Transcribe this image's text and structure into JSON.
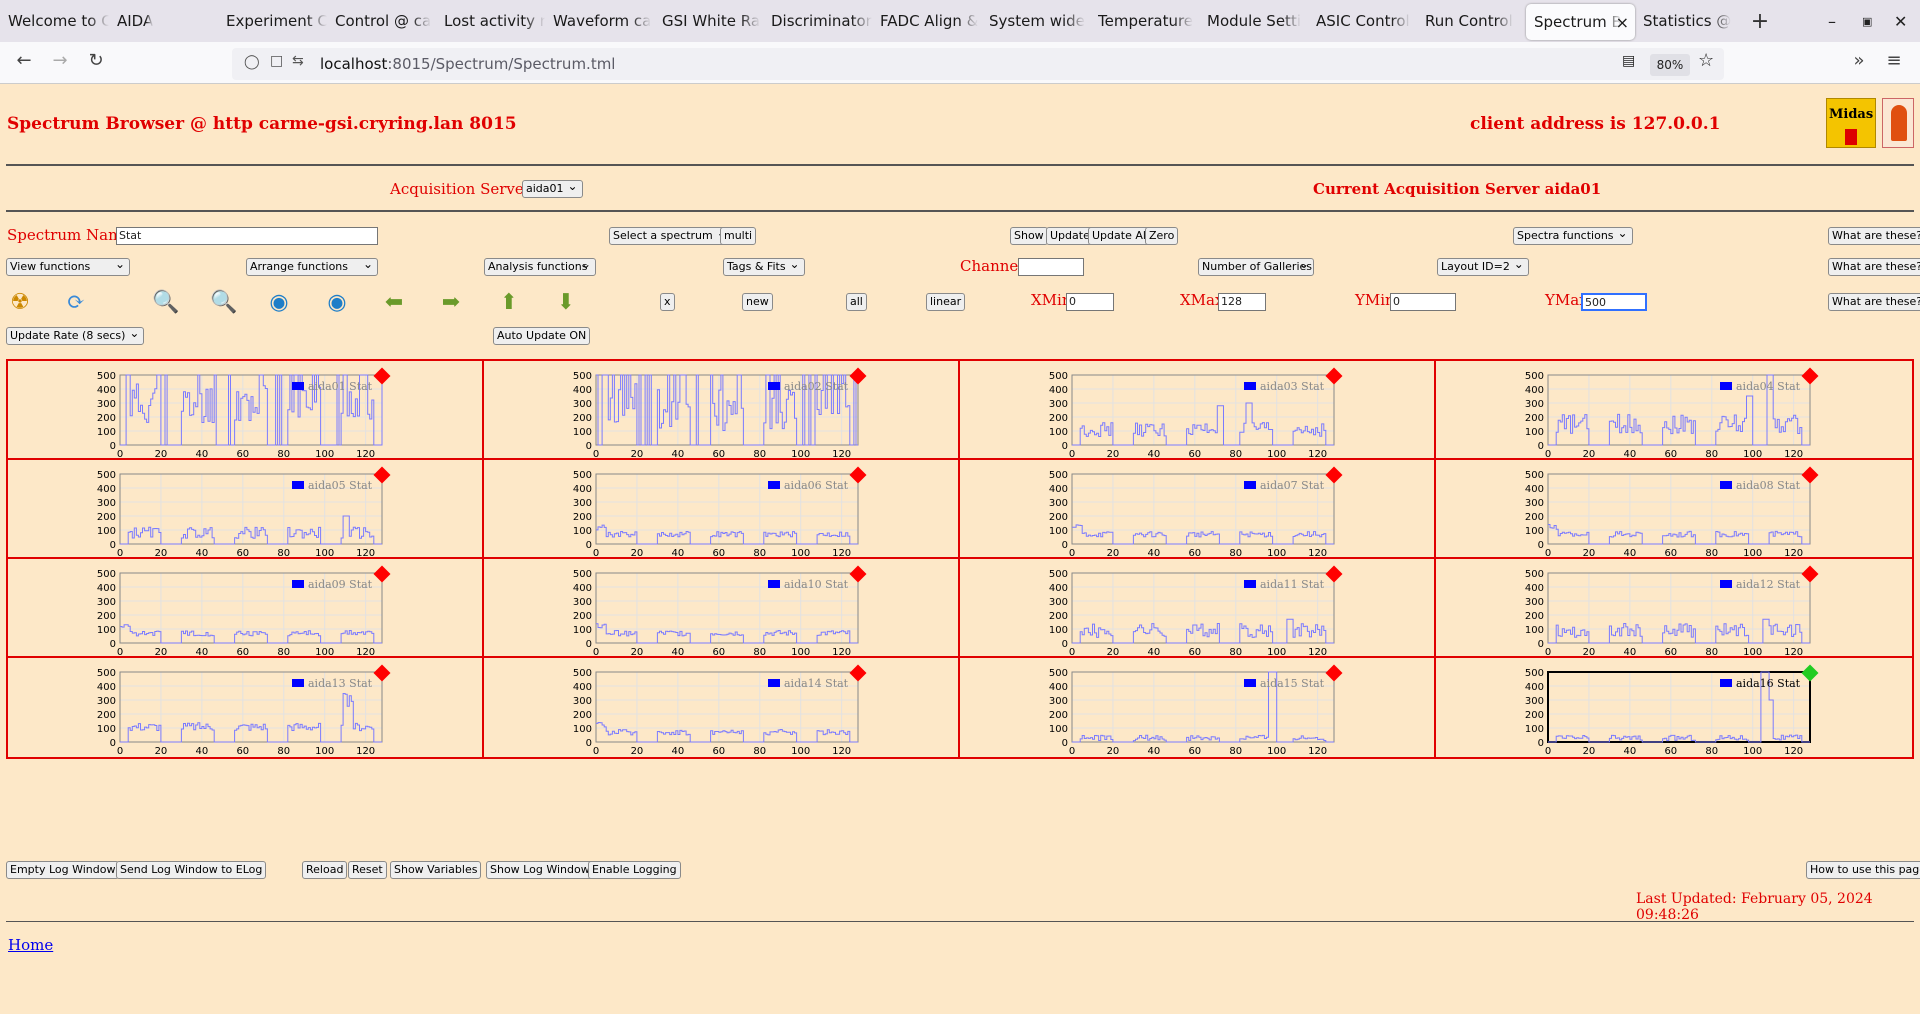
{
  "browser": {
    "tabs": [
      {
        "label": "Welcome to C"
      },
      {
        "label": "AIDA"
      },
      {
        "label": "Experiment C"
      },
      {
        "label": "Control @ ca"
      },
      {
        "label": "Lost activity r"
      },
      {
        "label": "Waveform ca"
      },
      {
        "label": "GSI White Ra"
      },
      {
        "label": "Discriminator"
      },
      {
        "label": "FADC Align &"
      },
      {
        "label": "System wide"
      },
      {
        "label": "Temperature"
      },
      {
        "label": "Module Setti"
      },
      {
        "label": "ASIC Control"
      },
      {
        "label": "Run Control"
      },
      {
        "label": "Spectrum B",
        "active": true
      },
      {
        "label": "Statistics @"
      }
    ],
    "url_host": "localhost",
    "url_rest": ":8015/Spectrum/Spectrum.tml",
    "zoom": "80%"
  },
  "header": {
    "title": "Spectrum Browser @ http carme-gsi.cryring.lan 8015",
    "client": "client address is 127.0.0.1",
    "logo_midas": "Midas"
  },
  "acq": {
    "label": "Acquisition Servers",
    "server_select": "aida01",
    "current": "Current Acquisition Server aida01"
  },
  "controls": {
    "spectrum_name_label": "Spectrum Name:",
    "spectrum_name_value": "Stat",
    "select_spectrum": "Select a spectrum",
    "multi": "multi",
    "show": "Show",
    "update": "Update",
    "update_all": "Update All",
    "zero": "Zero",
    "spectra_functions": "Spectra functions",
    "what1": "What are these?",
    "view_functions": "View functions",
    "arrange_functions": "Arrange functions",
    "analysis_functions": "Analysis functions",
    "tags_fits": "Tags & Fits",
    "channel_label": "Channel:",
    "channel_value": "",
    "galleries": "Number of Galleries",
    "layout": "Layout ID=2",
    "what2": "What are these?",
    "x_btn": "x",
    "new_btn": "new",
    "all_btn": "all",
    "linear_btn": "linear",
    "xmin_label": "XMin",
    "xmin": "0",
    "xmax_label": "XMax",
    "xmax": "128",
    "ymin_label": "YMin",
    "ymin": "0",
    "ymax_label": "YMax",
    "ymax": "500",
    "what3": "What are these?",
    "update_rate": "Update Rate (8 secs)",
    "auto_update": "Auto Update ON"
  },
  "footer": {
    "buttons": [
      "Empty Log Window",
      "Send Log Window to ELog",
      "Reload",
      "Reset",
      "Show Variables",
      "Show Log Window",
      "Enable Logging"
    ],
    "how_to": "How to use this page",
    "last_updated": "Last Updated: February 05, 2024 09:48:26",
    "home": "Home"
  },
  "chart_data": {
    "type": "line",
    "xlim": [
      0,
      128
    ],
    "ylim": [
      0,
      500
    ],
    "xticks": [
      "0",
      "20",
      "40",
      "60",
      "80",
      "100",
      "120"
    ],
    "yticks": [
      "0",
      "100",
      "200",
      "300",
      "400",
      "500"
    ],
    "panels": [
      {
        "name": "aida01 Stat",
        "status": "red",
        "profile": "busy1"
      },
      {
        "name": "aida02 Stat",
        "status": "red",
        "profile": "busy2"
      },
      {
        "name": "aida03 Stat",
        "status": "red",
        "profile": "mid"
      },
      {
        "name": "aida04 Stat",
        "status": "red",
        "profile": "mid2"
      },
      {
        "name": "aida05 Stat",
        "status": "red",
        "profile": "low1"
      },
      {
        "name": "aida06 Stat",
        "status": "red",
        "profile": "low2"
      },
      {
        "name": "aida07 Stat",
        "status": "red",
        "profile": "low2"
      },
      {
        "name": "aida08 Stat",
        "status": "red",
        "profile": "low2"
      },
      {
        "name": "aida09 Stat",
        "status": "red",
        "profile": "low2"
      },
      {
        "name": "aida10 Stat",
        "status": "red",
        "profile": "low2"
      },
      {
        "name": "aida11 Stat",
        "status": "red",
        "profile": "low3"
      },
      {
        "name": "aida12 Stat",
        "status": "red",
        "profile": "low3"
      },
      {
        "name": "aida13 Stat",
        "status": "red",
        "profile": "low4"
      },
      {
        "name": "aida14 Stat",
        "status": "red",
        "profile": "low2"
      },
      {
        "name": "aida15 Stat",
        "status": "red",
        "profile": "spike"
      },
      {
        "name": "aida16 Stat",
        "status": "green",
        "profile": "spike2",
        "selected": true
      }
    ],
    "colors": {
      "line": "#7b7bff",
      "legend": "#0000ff",
      "red": "#ff0000",
      "green": "#22cc22"
    }
  }
}
